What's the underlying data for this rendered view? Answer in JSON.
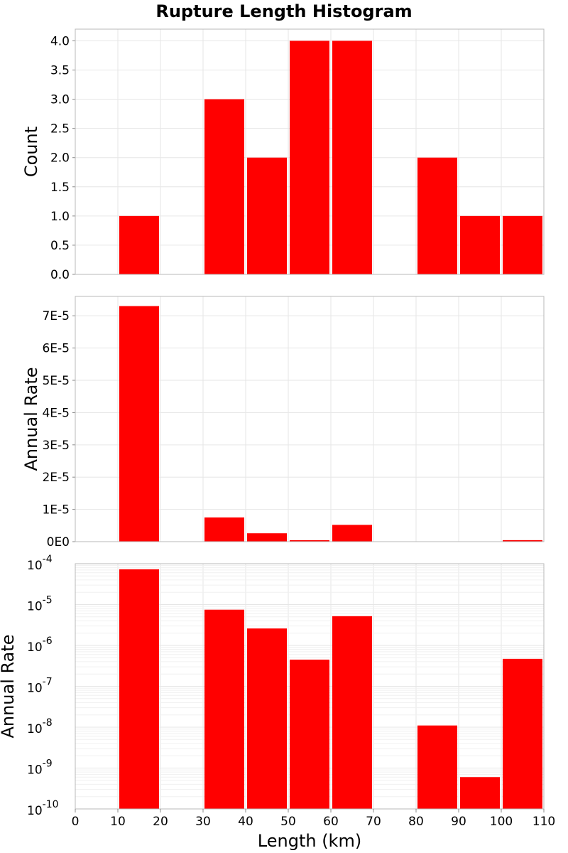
{
  "chart_data": {
    "type": "bar",
    "title": "Rupture Length Histogram",
    "xlabel": "Length (km)",
    "xlim": [
      0,
      110
    ],
    "xticks": [
      "0",
      "10",
      "20",
      "30",
      "40",
      "50",
      "60",
      "70",
      "80",
      "90",
      "100",
      "110"
    ],
    "bins": [
      [
        10,
        20
      ],
      [
        30,
        40
      ],
      [
        40,
        50
      ],
      [
        50,
        60
      ],
      [
        60,
        70
      ],
      [
        80,
        90
      ],
      [
        90,
        100
      ],
      [
        100,
        110
      ]
    ],
    "bar_color": "#ff0000",
    "panels": [
      {
        "id": "count",
        "ylabel": "Count",
        "scale": "linear",
        "ylim": [
          0,
          4.2
        ],
        "yticks": [
          "0.0",
          "0.5",
          "1.0",
          "1.5",
          "2.0",
          "2.5",
          "3.0",
          "3.5",
          "4.0"
        ],
        "ytick_values": [
          0,
          0.5,
          1,
          1.5,
          2,
          2.5,
          3,
          3.5,
          4
        ],
        "values": [
          1,
          3,
          2,
          4,
          4,
          2,
          1,
          1
        ]
      },
      {
        "id": "rate-linear",
        "ylabel": "Annual Rate",
        "scale": "linear",
        "ylim": [
          0,
          7.6e-05
        ],
        "yticks": [
          "0E0",
          "1E-5",
          "2E-5",
          "3E-5",
          "4E-5",
          "5E-5",
          "6E-5",
          "7E-5"
        ],
        "ytick_values": [
          0,
          1e-05,
          2e-05,
          3e-05,
          4e-05,
          5e-05,
          6e-05,
          7e-05
        ],
        "values": [
          7.3e-05,
          7.5e-06,
          2.6e-06,
          4.5e-07,
          5.2e-06,
          1.1e-08,
          6e-10,
          4.7e-07
        ]
      },
      {
        "id": "rate-log",
        "ylabel": "Annual Rate",
        "scale": "log",
        "ylim": [
          1e-10,
          0.0001
        ],
        "ytick_base": "10",
        "ytick_exponents": [
          "-10",
          "-9",
          "-8",
          "-7",
          "-6",
          "-5",
          "-4"
        ],
        "values": [
          7.3e-05,
          7.5e-06,
          2.6e-06,
          4.5e-07,
          5.2e-06,
          1.1e-08,
          6e-10,
          4.7e-07
        ]
      }
    ]
  }
}
